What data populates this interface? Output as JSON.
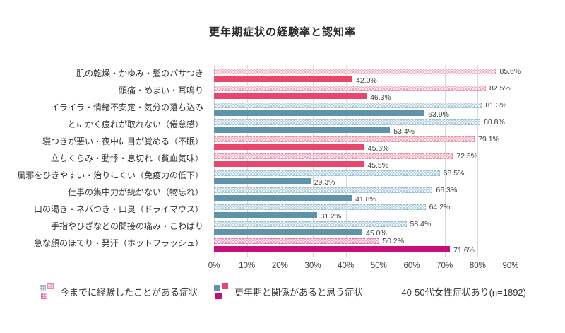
{
  "title": "更年期症状の経験率と認知率",
  "note": "40-50代女性症状あり(n=1892)",
  "legend": {
    "experienced": "今までに経験したことがある症状",
    "perceived": "更年期と関係があると思う症状"
  },
  "colors": {
    "pink_solid": "#E8476D",
    "blue_solid": "#5E93AB",
    "magenta_solid": "#C60F7D",
    "pink_dotted_border": "#EE8AA3",
    "blue_dotted_border": "#93BACD",
    "magenta_dotted_border": "#E668AB",
    "gridline": "#D9D9D9"
  },
  "chart_data": {
    "type": "bar",
    "orientation": "horizontal",
    "title": "更年期症状の経験率と認知率",
    "categories": [
      "肌の乾燥・かゆみ・髪のパサつき",
      "頭痛・めまい・耳鳴り",
      "イライラ・情緒不安定・気分の落ち込み",
      "とにかく疲れが取れない（倦怠感）",
      "寝つきが悪い・夜中に目が覚める（不眠）",
      "立ちくらみ・動悸・息切れ（貧血気味）",
      "風邪をひきやすい・治りにくい（免疫力の低下）",
      "仕事の集中力が続かない（物忘れ）",
      "口の渇き・ネバつき・口臭（ドライマウス）",
      "手指やひざなどの間接の痛み・こわばり",
      "急な顔のほてり・発汗（ホットフラッシュ）"
    ],
    "series": [
      {
        "name": "今までに経験したことがある症状",
        "style": "dotted",
        "values": [
          85.6,
          82.5,
          81.3,
          80.8,
          79.1,
          72.5,
          68.5,
          66.3,
          64.2,
          58.4,
          50.2
        ]
      },
      {
        "name": "更年期と関係があると思う症状",
        "style": "solid",
        "values": [
          42.0,
          46.3,
          63.9,
          53.4,
          45.6,
          45.5,
          29.3,
          41.8,
          31.2,
          45.0,
          71.6
        ]
      }
    ],
    "row_colors": [
      "pink",
      "pink",
      "blue",
      "blue",
      "pink",
      "pink",
      "blue",
      "blue",
      "blue",
      "blue",
      "magenta"
    ],
    "xlim": [
      0,
      90
    ],
    "x_ticks": [
      "0%",
      "10%",
      "20%",
      "30%",
      "40%",
      "50%",
      "60%",
      "70%",
      "80%",
      "90%"
    ],
    "value_suffix": "%",
    "grid": true,
    "legend_position": "bottom"
  }
}
